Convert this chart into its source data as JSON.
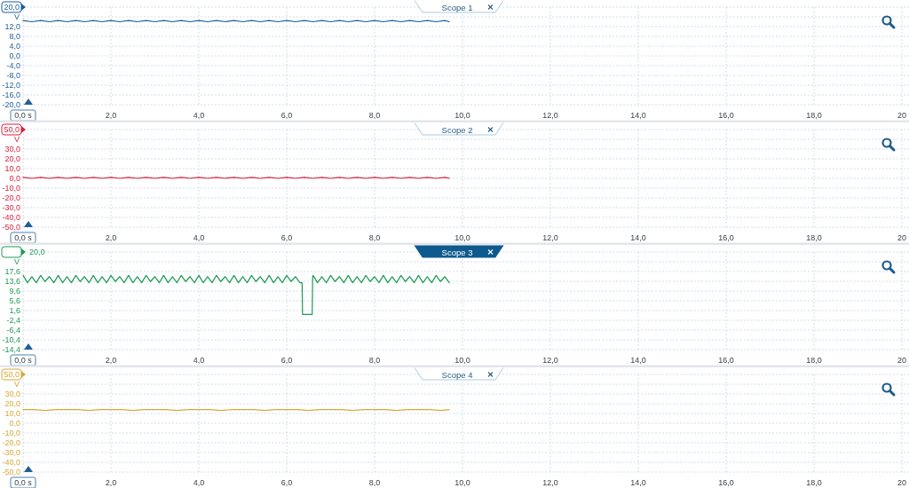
{
  "chart_data": [
    {
      "type": "line",
      "title": "Scope 1",
      "ylabel": "V",
      "xlim": [
        0,
        20
      ],
      "ylim": [
        -20,
        20
      ],
      "grid": true,
      "xticks": [
        {
          "value": 0,
          "label": "0,0 s"
        },
        {
          "value": 2,
          "label": "2,0"
        },
        {
          "value": 4,
          "label": "4,0"
        },
        {
          "value": 6,
          "label": "6,0"
        },
        {
          "value": 8,
          "label": "8,0"
        },
        {
          "value": 10,
          "label": "10,0"
        },
        {
          "value": 12,
          "label": "12,0"
        },
        {
          "value": 14,
          "label": "14,0"
        },
        {
          "value": 16,
          "label": "16,0"
        },
        {
          "value": 18,
          "label": "18,0"
        },
        {
          "value": 20,
          "label": "20"
        }
      ],
      "yticks": [
        {
          "value": 20,
          "label": "20,0"
        },
        {
          "value": 16,
          "label": null
        },
        {
          "value": 12,
          "label": "12,0"
        },
        {
          "value": 8,
          "label": "8,0"
        },
        {
          "value": 4,
          "label": "4,0"
        },
        {
          "value": 0,
          "label": "0,0"
        },
        {
          "value": -4,
          "label": "-4,0"
        },
        {
          "value": -8,
          "label": "-8,0"
        },
        {
          "value": -12,
          "label": "-12,0"
        },
        {
          "value": -16,
          "label": "-16,0"
        },
        {
          "value": -20,
          "label": "-20,0"
        }
      ],
      "series": [
        {
          "color": "#1f5f99",
          "x": [
            0,
            0.2,
            0.4,
            0.6,
            0.8,
            1,
            1.2,
            1.4,
            1.6,
            1.8,
            2,
            2.2,
            2.4,
            2.6,
            2.8,
            3,
            3.2,
            3.4,
            3.6,
            3.8,
            4,
            4.2,
            4.4,
            4.6,
            4.8,
            5,
            5.2,
            5.4,
            5.6,
            5.8,
            6,
            6.2,
            6.4,
            6.6,
            6.8,
            7,
            7.2,
            7.4,
            7.6,
            7.8,
            8,
            8.2,
            8.4,
            8.6,
            8.8,
            9,
            9.2,
            9.4,
            9.6,
            9.7
          ],
          "values": [
            14.5,
            14,
            14.5,
            14,
            14.5,
            14,
            14.5,
            14,
            14.5,
            14,
            14.5,
            14,
            14.5,
            14,
            14.5,
            14,
            14.5,
            14,
            14.5,
            14,
            14.5,
            14,
            14.5,
            14,
            14.5,
            14,
            14.5,
            14,
            14.5,
            14,
            14.5,
            14,
            14.5,
            14,
            14.5,
            14,
            14.5,
            14,
            14.5,
            14,
            14.5,
            14,
            14.5,
            14,
            14.5,
            14,
            14.5,
            14,
            14.5,
            14
          ]
        }
      ]
    },
    {
      "type": "line",
      "title": "Scope 2",
      "ylabel": "V",
      "xlim": [
        0,
        20
      ],
      "ylim": [
        -50,
        50
      ],
      "grid": true,
      "xticks": [
        {
          "value": 0,
          "label": "0,0 s"
        },
        {
          "value": 2,
          "label": "2,0"
        },
        {
          "value": 4,
          "label": "4,0"
        },
        {
          "value": 6,
          "label": "6,0"
        },
        {
          "value": 8,
          "label": "8,0"
        },
        {
          "value": 10,
          "label": "10,0"
        },
        {
          "value": 12,
          "label": "12,0"
        },
        {
          "value": 14,
          "label": "14,0"
        },
        {
          "value": 16,
          "label": "16,0"
        },
        {
          "value": 18,
          "label": "18,0"
        },
        {
          "value": 20,
          "label": "20"
        }
      ],
      "yticks": [
        {
          "value": 50,
          "label": "50,0"
        },
        {
          "value": 40,
          "label": null
        },
        {
          "value": 30,
          "label": "30,0"
        },
        {
          "value": 20,
          "label": "20,0"
        },
        {
          "value": 10,
          "label": "10,0"
        },
        {
          "value": 0,
          "label": "0,0"
        },
        {
          "value": -10,
          "label": "-10,0"
        },
        {
          "value": -20,
          "label": "-20,0"
        },
        {
          "value": -30,
          "label": "-30,0"
        },
        {
          "value": -40,
          "label": "-40,0"
        },
        {
          "value": -50,
          "label": "-50,0"
        }
      ],
      "series": [
        {
          "color": "#d6243f",
          "x": [
            0,
            0.2,
            0.4,
            0.6,
            0.8,
            1,
            1.2,
            1.4,
            1.6,
            1.8,
            2,
            2.2,
            2.4,
            2.6,
            2.8,
            3,
            3.2,
            3.4,
            3.6,
            3.8,
            4,
            4.2,
            4.4,
            4.6,
            4.8,
            5,
            5.2,
            5.4,
            5.6,
            5.8,
            6,
            6.2,
            6.4,
            6.6,
            6.8,
            7,
            7.2,
            7.4,
            7.6,
            7.8,
            8,
            8.2,
            8.4,
            8.6,
            8.8,
            9,
            9.2,
            9.4,
            9.6,
            9.7
          ],
          "values": [
            1,
            0,
            1,
            0,
            1,
            0,
            1,
            0,
            1,
            0,
            1,
            0,
            1,
            0,
            1,
            0,
            1,
            0,
            1,
            0,
            1,
            0,
            1,
            0,
            1,
            0,
            1,
            0,
            1,
            0,
            1,
            0,
            1,
            0,
            1,
            0,
            1,
            0,
            1,
            0,
            1,
            0,
            1,
            0,
            1,
            0,
            1,
            0,
            1,
            0
          ]
        }
      ]
    },
    {
      "type": "line",
      "title": "Scope 3",
      "ylabel": "V",
      "xlim": [
        0,
        20
      ],
      "ylim": [
        -14.4,
        25.6
      ],
      "grid": true,
      "annotations": [
        "20,0"
      ],
      "xticks": [
        {
          "value": 0,
          "label": "0,0 s"
        },
        {
          "value": 2,
          "label": "2,0"
        },
        {
          "value": 4,
          "label": "4,0"
        },
        {
          "value": 6,
          "label": "6,0"
        },
        {
          "value": 8,
          "label": "8,0"
        },
        {
          "value": 10,
          "label": "10,0"
        },
        {
          "value": 12,
          "label": "12,0"
        },
        {
          "value": 14,
          "label": "14,0"
        },
        {
          "value": 16,
          "label": "16,0"
        },
        {
          "value": 18,
          "label": "18,0"
        },
        {
          "value": 20,
          "label": "20"
        }
      ],
      "yticks": [
        {
          "value": 25.6,
          "label": null
        },
        {
          "value": 21.6,
          "label": null
        },
        {
          "value": 17.6,
          "label": "17,6"
        },
        {
          "value": 13.6,
          "label": "13,6"
        },
        {
          "value": 9.6,
          "label": "9,6"
        },
        {
          "value": 5.6,
          "label": "5,6"
        },
        {
          "value": 1.6,
          "label": "1,6"
        },
        {
          "value": -2.4,
          "label": "-2,4"
        },
        {
          "value": -6.4,
          "label": "-6,4"
        },
        {
          "value": -10.4,
          "label": "-10,4"
        },
        {
          "value": -14.4,
          "label": "-14,4"
        }
      ],
      "series": [
        {
          "color": "#1f9a55",
          "x": [
            0,
            0.1,
            0.2,
            0.3,
            0.4,
            0.5,
            0.6,
            0.7,
            0.8,
            0.9,
            1,
            1.1,
            1.2,
            1.3,
            1.4,
            1.5,
            1.6,
            1.7,
            1.8,
            1.9,
            2,
            2.1,
            2.2,
            2.3,
            2.4,
            2.5,
            2.6,
            2.7,
            2.8,
            2.9,
            3,
            3.1,
            3.2,
            3.3,
            3.4,
            3.5,
            3.6,
            3.7,
            3.8,
            3.9,
            4,
            4.1,
            4.2,
            4.3,
            4.4,
            4.5,
            4.6,
            4.7,
            4.8,
            4.9,
            5,
            5.1,
            5.2,
            5.3,
            5.4,
            5.5,
            5.6,
            5.7,
            5.8,
            5.9,
            6,
            6.1,
            6.2,
            6.3,
            6.35,
            6.36,
            6.58,
            6.59,
            6.6,
            6.7,
            6.8,
            6.9,
            7,
            7.1,
            7.2,
            7.3,
            7.4,
            7.5,
            7.6,
            7.7,
            7.8,
            7.9,
            8,
            8.1,
            8.2,
            8.3,
            8.4,
            8.5,
            8.6,
            8.7,
            8.8,
            8.9,
            9,
            9.1,
            9.2,
            9.3,
            9.4,
            9.5,
            9.6,
            9.7
          ],
          "values": [
            16,
            13,
            15.5,
            13,
            16,
            13.5,
            15.5,
            13,
            16,
            13,
            15.5,
            13,
            16,
            13.5,
            15.5,
            13,
            16,
            13,
            15.5,
            13,
            16,
            13.5,
            15.5,
            13,
            16,
            13,
            15.5,
            13,
            16,
            13.5,
            15.5,
            13,
            16,
            13,
            15.5,
            13,
            16,
            13.5,
            15.5,
            13,
            16,
            13,
            15.5,
            13,
            16,
            13.5,
            15.5,
            13,
            16,
            13,
            15.5,
            13,
            16,
            13.5,
            15.5,
            13,
            16,
            13,
            15.5,
            13,
            16,
            13.5,
            15.5,
            13,
            13,
            0,
            0,
            15,
            16,
            13,
            15.5,
            13,
            16,
            13.5,
            15.5,
            13,
            16,
            13,
            15.5,
            13,
            16,
            13.5,
            15.5,
            13,
            16,
            13,
            15.5,
            13,
            16,
            13.5,
            15.5,
            13,
            16,
            13,
            15.5,
            13,
            16,
            13.5,
            15.5,
            13
          ]
        }
      ]
    },
    {
      "type": "line",
      "title": "Scope 4",
      "ylabel": "V",
      "xlim": [
        0,
        20
      ],
      "ylim": [
        -50,
        50
      ],
      "grid": true,
      "xticks": [
        {
          "value": 0,
          "label": "0,0 s"
        },
        {
          "value": 2,
          "label": "2,0"
        },
        {
          "value": 4,
          "label": "4,0"
        },
        {
          "value": 6,
          "label": "6,0"
        },
        {
          "value": 8,
          "label": "8,0"
        },
        {
          "value": 10,
          "label": "10,0"
        },
        {
          "value": 12,
          "label": "12,0"
        },
        {
          "value": 14,
          "label": "14,0"
        },
        {
          "value": 16,
          "label": "16,0"
        },
        {
          "value": 18,
          "label": "18,0"
        },
        {
          "value": 20,
          "label": "20"
        }
      ],
      "yticks": [
        {
          "value": 50,
          "label": "50,0"
        },
        {
          "value": 40,
          "label": null
        },
        {
          "value": 30,
          "label": "30,0"
        },
        {
          "value": 20,
          "label": "20,0"
        },
        {
          "value": 10,
          "label": "10,0"
        },
        {
          "value": 0,
          "label": "0,0"
        },
        {
          "value": -10,
          "label": "-10,0"
        },
        {
          "value": -20,
          "label": "-20,0"
        },
        {
          "value": -30,
          "label": "-30,0"
        },
        {
          "value": -40,
          "label": "-40,0"
        },
        {
          "value": -50,
          "label": "-50,0"
        }
      ],
      "series": [
        {
          "color": "#d6a93a",
          "x": [
            0,
            0.25,
            0.5,
            0.75,
            1,
            1.25,
            1.5,
            1.75,
            2,
            2.25,
            2.5,
            2.75,
            3,
            3.25,
            3.5,
            3.75,
            4,
            4.25,
            4.5,
            4.75,
            5,
            5.25,
            5.5,
            5.75,
            6,
            6.25,
            6.5,
            6.75,
            7,
            7.25,
            7.5,
            7.75,
            8,
            8.25,
            8.5,
            8.75,
            9,
            9.25,
            9.5,
            9.7
          ],
          "values": [
            14,
            14,
            13,
            14,
            14,
            14,
            13,
            14,
            14,
            14,
            13,
            14,
            14,
            14,
            13,
            14,
            14,
            14,
            13,
            14,
            14,
            14,
            13,
            14,
            14,
            14,
            13,
            14,
            14,
            14,
            13,
            14,
            14,
            14,
            13,
            14,
            14,
            14,
            13,
            14
          ]
        }
      ]
    }
  ]
}
